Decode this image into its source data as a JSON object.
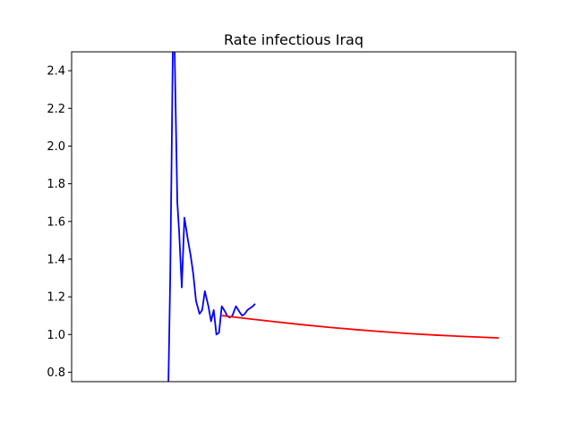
{
  "chart_data": {
    "type": "line",
    "title": "Rate infectious Iraq",
    "xlabel": "",
    "ylabel": "",
    "x_ticks_visible": false,
    "grid": false,
    "legend": "none",
    "xlim": [
      0,
      100
    ],
    "ylim": [
      0.75,
      2.5
    ],
    "yticks": [
      "0.8",
      "1.0",
      "1.2",
      "1.4",
      "1.6",
      "1.8",
      "2.0",
      "2.2",
      "2.4"
    ],
    "series": [
      {
        "color": "#0000ff",
        "style": "observed",
        "x": [
          21.8,
          22.2,
          22.5,
          22.8,
          23.2,
          23.8,
          24.2,
          24.8,
          25.4,
          26.2,
          26.8,
          27.4,
          28.0,
          28.8,
          29.4,
          30.0,
          30.8,
          31.4,
          32.0,
          32.6,
          33.2,
          33.8,
          34.6,
          35.0,
          35.6,
          36.2,
          37.0,
          37.8,
          38.4,
          39.0,
          39.6,
          40.2,
          40.8,
          41.2
        ],
        "y": [
          0.75,
          1.3,
          1.9,
          2.55,
          2.5,
          1.7,
          1.55,
          1.25,
          1.62,
          1.5,
          1.42,
          1.32,
          1.18,
          1.11,
          1.13,
          1.23,
          1.15,
          1.07,
          1.13,
          1.0,
          1.01,
          1.15,
          1.12,
          1.1,
          1.09,
          1.1,
          1.15,
          1.12,
          1.1,
          1.11,
          1.13,
          1.14,
          1.15,
          1.16
        ]
      },
      {
        "color": "#ff0000",
        "style": "projection",
        "x": [
          34,
          40,
          46,
          52,
          58,
          64,
          70,
          76,
          82,
          88,
          96
        ],
        "y": [
          1.1,
          1.083,
          1.067,
          1.052,
          1.038,
          1.026,
          1.015,
          1.005,
          0.997,
          0.99,
          0.982
        ]
      }
    ]
  }
}
